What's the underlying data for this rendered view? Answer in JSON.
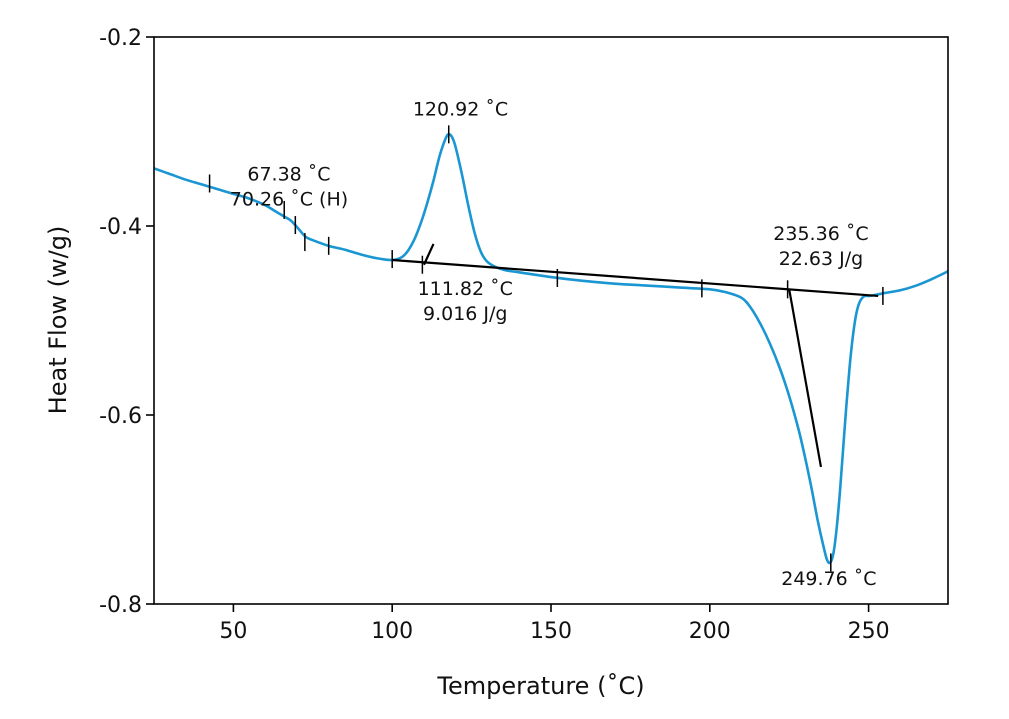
{
  "chart_data": {
    "type": "line",
    "xlabel": "Temperature (˚C)",
    "ylabel": "Heat Flow (w/g)",
    "xlim": [
      25,
      275
    ],
    "ylim": [
      -0.8,
      -0.2
    ],
    "x_ticks": [
      50,
      100,
      150,
      200,
      250
    ],
    "y_ticks": [
      -0.8,
      -0.6,
      -0.4,
      -0.2
    ],
    "x_tick_labels": [
      "50",
      "100",
      "150",
      "200",
      "250"
    ],
    "y_tick_labels": [
      "-0.8",
      "-0.6",
      "-0.4",
      "-0.2"
    ],
    "grid": false,
    "legend": "none",
    "colors": {
      "curve": "#1a96d2",
      "construction": "#000000",
      "axes": "#000000"
    },
    "series": [
      {
        "x": [
          25,
          30,
          35,
          40,
          45,
          50,
          55,
          60,
          63,
          66,
          68,
          70,
          71,
          72,
          73,
          75,
          80,
          85,
          90,
          95,
          100,
          103,
          105,
          107,
          109,
          111,
          113,
          115,
          117,
          118,
          119,
          120,
          122,
          124,
          126,
          128,
          130,
          133,
          136,
          140,
          150,
          160,
          170,
          180,
          190,
          200,
          205,
          210,
          213,
          216,
          219,
          222,
          225,
          228,
          230,
          232,
          234,
          236,
          237,
          238,
          239,
          240,
          241,
          242,
          243,
          244,
          245,
          246,
          247,
          248,
          249,
          250,
          252,
          255,
          260,
          265,
          270,
          275
        ],
        "y": [
          -0.339,
          -0.345,
          -0.351,
          -0.356,
          -0.361,
          -0.366,
          -0.371,
          -0.378,
          -0.384,
          -0.39,
          -0.394,
          -0.401,
          -0.405,
          -0.409,
          -0.412,
          -0.415,
          -0.421,
          -0.425,
          -0.43,
          -0.434,
          -0.436,
          -0.433,
          -0.426,
          -0.414,
          -0.397,
          -0.376,
          -0.352,
          -0.325,
          -0.306,
          -0.303,
          -0.307,
          -0.317,
          -0.346,
          -0.379,
          -0.408,
          -0.428,
          -0.438,
          -0.444,
          -0.447,
          -0.449,
          -0.454,
          -0.458,
          -0.461,
          -0.463,
          -0.465,
          -0.467,
          -0.47,
          -0.476,
          -0.487,
          -0.504,
          -0.525,
          -0.55,
          -0.58,
          -0.616,
          -0.645,
          -0.677,
          -0.712,
          -0.742,
          -0.754,
          -0.756,
          -0.745,
          -0.718,
          -0.68,
          -0.635,
          -0.59,
          -0.55,
          -0.518,
          -0.495,
          -0.482,
          -0.476,
          -0.474,
          -0.474,
          -0.473,
          -0.471,
          -0.468,
          -0.463,
          -0.456,
          -0.448
        ]
      }
    ],
    "baselines": [
      {
        "x": [
          100,
          253
        ],
        "y": [
          -0.436,
          -0.474
        ]
      },
      {
        "x": [
          110,
          113
        ],
        "y": [
          -0.441,
          -0.419
        ]
      },
      {
        "x": [
          225,
          235
        ],
        "y": [
          -0.467,
          -0.655
        ]
      }
    ],
    "markers": [
      [
        42.5,
        -0.355
      ],
      [
        66,
        -0.383
      ],
      [
        69.5,
        -0.399
      ],
      [
        72.5,
        -0.417
      ],
      [
        80,
        -0.421
      ],
      [
        100,
        -0.435
      ],
      [
        109.5,
        -0.441
      ],
      [
        117.8,
        -0.303
      ],
      [
        152,
        -0.455
      ],
      [
        197.5,
        -0.466
      ],
      [
        224.5,
        -0.467
      ],
      [
        238.1,
        -0.756
      ],
      [
        254.5,
        -0.474
      ]
    ],
    "annotations": [
      {
        "lines": [
          "120.92 ˚C"
        ],
        "x": 121.5,
        "y": -0.283
      },
      {
        "lines": [
          "67.38 ˚C",
          "70.26 ˚C (H)"
        ],
        "x": 67.5,
        "y": -0.352
      },
      {
        "lines": [
          "111.82 ˚C",
          "9.016 J/g"
        ],
        "x": 123,
        "y": -0.473
      },
      {
        "lines": [
          "235.36 ˚C",
          "22.63 J/g"
        ],
        "x": 235,
        "y": -0.415
      },
      {
        "lines": [
          "249.76 ˚C"
        ],
        "x": 237.5,
        "y": -0.78
      }
    ]
  }
}
